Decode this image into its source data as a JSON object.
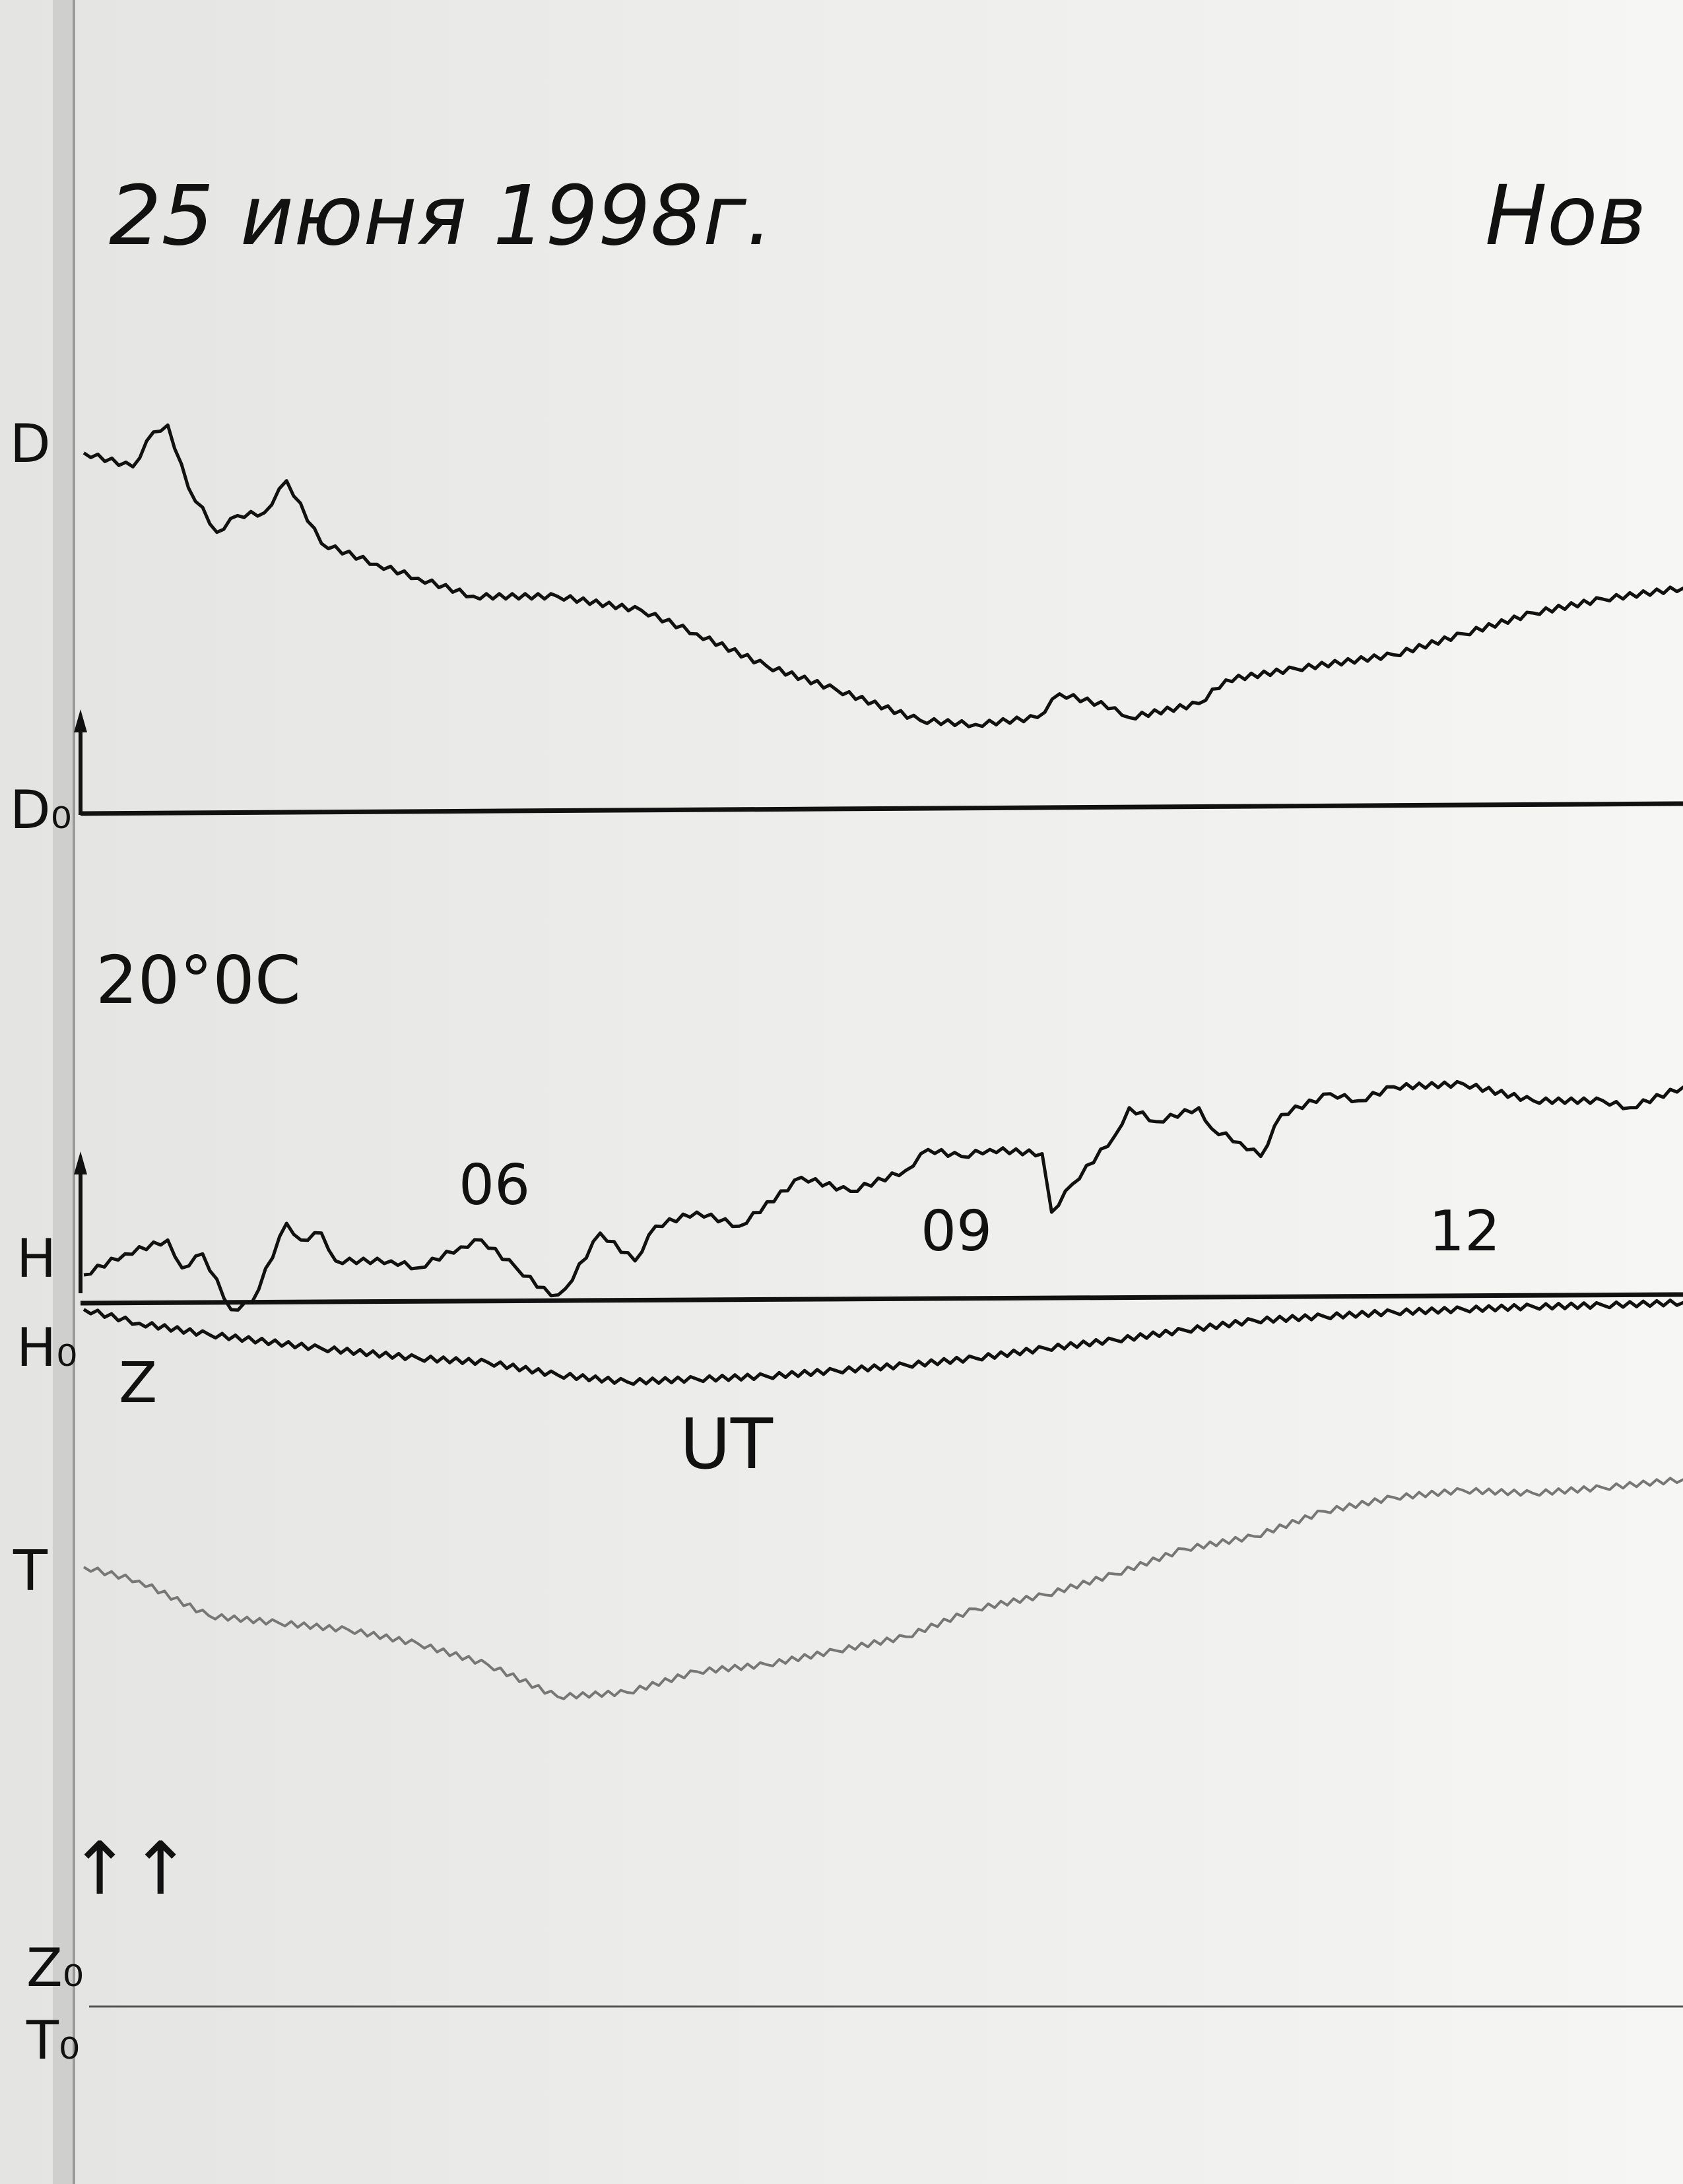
{
  "header": {
    "date": "25 июня 1998г.",
    "station": "Нов"
  },
  "temperature_note": "20°0С",
  "labels": {
    "D": "D",
    "D0": "D₀",
    "H": "H",
    "H0": "H₀",
    "Z": "Z",
    "T": "T",
    "Z0": "Z₀",
    "T0": "T₀",
    "ut": "UT",
    "arrows": "↑↑"
  },
  "chart_data": {
    "type": "line",
    "title": "25 июня 1998г.",
    "xlabel": "UT",
    "ylabel": "",
    "x_ticks": [
      "06",
      "09",
      "12"
    ],
    "x_tick_values": [
      6,
      9,
      12
    ],
    "xlim": [
      3.35,
      13.45
    ],
    "grid": false,
    "series": [
      {
        "name": "D",
        "baseline": "D₀",
        "color": "#111111",
        "x": [
          3.35,
          3.66,
          3.79,
          3.88,
          4.01,
          4.19,
          4.32,
          4.49,
          4.63,
          4.85,
          5.2,
          5.46,
          5.81,
          6.34,
          6.87,
          7.22,
          7.66,
          8.1,
          8.63,
          8.98,
          9.37,
          9.51,
          9.86,
          9.95,
          10.39,
          10.56,
          11.0,
          11.62,
          12.06,
          12.5,
          12.94,
          13.45
        ],
        "y": [
          258,
          248,
          273,
          278,
          233,
          201,
          213,
          215,
          238,
          193,
          178,
          168,
          155,
          155,
          145,
          128,
          105,
          88,
          66,
          63,
          68,
          85,
          75,
          68,
          78,
          95,
          103,
          113,
          128,
          143,
          153,
          161
        ]
      },
      {
        "name": "H",
        "baseline": "H₀",
        "color": "#111111",
        "x": [
          3.35,
          3.61,
          3.88,
          3.97,
          4.1,
          4.28,
          4.41,
          4.63,
          4.72,
          4.85,
          4.94,
          5.29,
          5.46,
          5.73,
          5.86,
          6.08,
          6.3,
          6.39,
          6.61,
          6.83,
          6.96,
          7.22,
          7.49,
          7.88,
          8.19,
          8.54,
          8.68,
          8.89,
          9.07,
          9.4,
          9.46,
          9.59,
          9.86,
          9.95,
          10.12,
          10.39,
          10.47,
          10.65,
          10.78,
          10.91,
          11.22,
          11.4,
          11.62,
          12.06,
          12.5,
          12.94,
          13.11,
          13.45
        ],
        "y": [
          17,
          32,
          42,
          22,
          32,
          -8,
          -3,
          54,
          42,
          47,
          27,
          27,
          22,
          37,
          42,
          22,
          2,
          7,
          47,
          27,
          52,
          62,
          52,
          87,
          77,
          92,
          107,
          102,
          107,
          104,
          62,
          82,
          117,
          137,
          127,
          137,
          122,
          112,
          102,
          132,
          147,
          142,
          152,
          154,
          142,
          142,
          137,
          152
        ]
      },
      {
        "name": "Z",
        "baseline": "Z₀",
        "color": "#111111",
        "x": [
          3.35,
          3.7,
          4.14,
          4.85,
          5.46,
          5.9,
          6.34,
          6.78,
          7.22,
          7.66,
          8.1,
          8.54,
          8.98,
          9.42,
          9.86,
          10.3,
          10.74,
          11.18,
          11.62,
          12.06,
          12.5,
          12.94,
          13.45
        ],
        "y": [
          500,
          490,
          482,
          472,
          465,
          462,
          453,
          448,
          450,
          452,
          456,
          460,
          465,
          472,
          478,
          485,
          492,
          495,
          498,
          500,
          502,
          503,
          505
        ]
      },
      {
        "name": "T",
        "baseline": "T₀",
        "color": "#777777",
        "x": [
          3.35,
          3.7,
          4.14,
          4.58,
          5.02,
          5.46,
          5.9,
          6.34,
          6.78,
          7.22,
          7.66,
          8.1,
          8.54,
          8.98,
          9.42,
          9.86,
          10.3,
          10.74,
          11.18,
          11.62,
          12.06,
          12.5,
          12.94,
          13.45
        ],
        "y": [
          315,
          305,
          280,
          275,
          270,
          260,
          245,
          222,
          225,
          240,
          245,
          255,
          265,
          285,
          295,
          310,
          328,
          337,
          355,
          365,
          370,
          368,
          372,
          378
        ]
      }
    ]
  }
}
